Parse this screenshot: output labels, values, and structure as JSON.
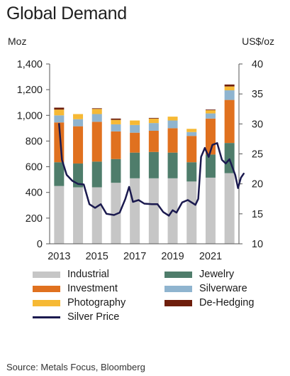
{
  "title": "Global Demand",
  "left_unit": "Moz",
  "right_unit": "US$/oz",
  "source": "Source: Metals Focus, Bloomberg",
  "colors": {
    "industrial": "#c6c6c6",
    "jewelry": "#4f7d6b",
    "investment": "#e0711f",
    "silverware": "#8fb4cf",
    "photography": "#f6b935",
    "dehedging": "#6e1e0c",
    "silver_price": "#1b1a4f"
  },
  "legend": [
    {
      "key": "industrial",
      "label": "Industrial"
    },
    {
      "key": "jewelry",
      "label": "Jewelry"
    },
    {
      "key": "investment",
      "label": "Investment"
    },
    {
      "key": "silverware",
      "label": "Silverware"
    },
    {
      "key": "photography",
      "label": "Photography"
    },
    {
      "key": "dehedging",
      "label": "De-Hedging"
    },
    {
      "key": "silver_price",
      "label": "Silver Price"
    }
  ],
  "chart_data": {
    "type": "bar",
    "stacked": true,
    "categories": [
      "2013",
      "2014",
      "2015",
      "2016",
      "2017",
      "2018",
      "2019",
      "2020",
      "2021",
      "2022"
    ],
    "x_tick_labels": [
      "2013",
      "2015",
      "2017",
      "2019",
      "2021"
    ],
    "y_left": {
      "min": 0,
      "max": 1400,
      "ticks": [
        "0",
        "200",
        "400",
        "600",
        "800",
        "1,000",
        "1,200",
        "1,400"
      ]
    },
    "y_right": {
      "min": 10,
      "max": 40,
      "ticks": [
        "10",
        "15",
        "20",
        "25",
        "30",
        "35",
        "40"
      ]
    },
    "series": [
      {
        "name": "Industrial",
        "key": "industrial",
        "values": [
          450,
          440,
          440,
          475,
          510,
          510,
          510,
          485,
          515,
          550
        ]
      },
      {
        "name": "Jewelry",
        "key": "jewelry",
        "values": [
          185,
          185,
          200,
          185,
          200,
          205,
          200,
          150,
          180,
          235
        ]
      },
      {
        "name": "Investment",
        "key": "investment",
        "values": [
          310,
          290,
          310,
          215,
          155,
          165,
          190,
          205,
          280,
          335
        ]
      },
      {
        "name": "Silverware",
        "key": "silverware",
        "values": [
          55,
          55,
          60,
          55,
          60,
          60,
          60,
          30,
          40,
          75
        ]
      },
      {
        "name": "Photography",
        "key": "photography",
        "values": [
          45,
          40,
          40,
          35,
          35,
          35,
          30,
          25,
          25,
          30
        ]
      },
      {
        "name": "De-Hedging",
        "key": "dehedging",
        "values": [
          15,
          0,
          5,
          10,
          0,
          5,
          0,
          0,
          5,
          15
        ]
      }
    ],
    "price_series": {
      "name": "Silver Price",
      "key": "silver_price",
      "axis": "right",
      "points": [
        [
          2013.0,
          30.0
        ],
        [
          2013.15,
          24.0
        ],
        [
          2013.4,
          21.5
        ],
        [
          2013.7,
          20.5
        ],
        [
          2014.0,
          20.0
        ],
        [
          2014.3,
          19.9
        ],
        [
          2014.6,
          16.6
        ],
        [
          2014.9,
          16.0
        ],
        [
          2015.2,
          16.6
        ],
        [
          2015.5,
          15.0
        ],
        [
          2015.9,
          14.8
        ],
        [
          2016.2,
          15.2
        ],
        [
          2016.5,
          17.5
        ],
        [
          2016.7,
          19.5
        ],
        [
          2016.9,
          17.0
        ],
        [
          2017.2,
          17.3
        ],
        [
          2017.5,
          16.7
        ],
        [
          2017.9,
          16.6
        ],
        [
          2018.2,
          16.6
        ],
        [
          2018.5,
          15.3
        ],
        [
          2018.8,
          14.7
        ],
        [
          2019.0,
          15.6
        ],
        [
          2019.2,
          15.2
        ],
        [
          2019.5,
          16.9
        ],
        [
          2019.8,
          17.3
        ],
        [
          2020.2,
          16.5
        ],
        [
          2020.35,
          17.5
        ],
        [
          2020.5,
          24.5
        ],
        [
          2020.7,
          26.0
        ],
        [
          2020.9,
          24.5
        ],
        [
          2021.1,
          26.5
        ],
        [
          2021.35,
          26.8
        ],
        [
          2021.6,
          24.0
        ],
        [
          2021.8,
          23.4
        ],
        [
          2022.0,
          24.1
        ],
        [
          2022.3,
          21.5
        ],
        [
          2022.45,
          19.3
        ],
        [
          2022.6,
          21.0
        ],
        [
          2022.75,
          21.7
        ]
      ]
    }
  }
}
